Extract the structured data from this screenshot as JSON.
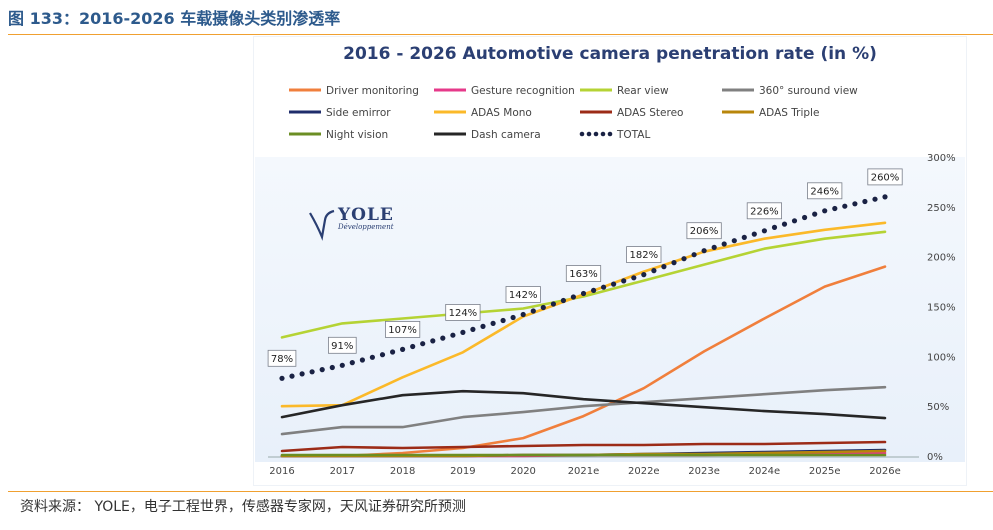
{
  "caption": "图 133：2016-2026 车载摄像头类别渗透率",
  "source": "资料来源： YOLE，电子工程世界，传感器专家网，天风证券研究所预测",
  "logo": {
    "name": "YOLE",
    "sub": "Développement"
  },
  "colors": {
    "caption": "#2d5a8c",
    "rule": "#f0a030",
    "title": "#2b3f73"
  },
  "chart_data": {
    "type": "line",
    "title": "2016 - 2026 Automotive camera penetration rate (in %)",
    "categories": [
      "2016",
      "2017",
      "2018",
      "2019",
      "2020",
      "2021e",
      "2022e",
      "2023e",
      "2024e",
      "2025e",
      "2026e"
    ],
    "y_ticks": [
      "0%",
      "50%",
      "100%",
      "150%",
      "200%",
      "250%",
      "300%"
    ],
    "ylim": [
      0,
      300
    ],
    "grid": false,
    "legend_position": "top",
    "series": [
      {
        "name": "Driver monitoring",
        "color": "#f07f3c",
        "style": "solid",
        "values": [
          0,
          0,
          3,
          8,
          18,
          40,
          68,
          105,
          138,
          170,
          190
        ]
      },
      {
        "name": "Gesture recognition",
        "color": "#e6398a",
        "style": "solid",
        "values": [
          0,
          0,
          0,
          0,
          0,
          1,
          1,
          1,
          2,
          2,
          3
        ]
      },
      {
        "name": "Rear view",
        "color": "#b5d334",
        "style": "solid",
        "values": [
          119,
          133,
          138,
          143,
          148,
          160,
          176,
          192,
          208,
          218,
          225
        ]
      },
      {
        "name": "360° suround view",
        "color": "#808080",
        "style": "solid",
        "values": [
          22,
          29,
          29,
          39,
          44,
          50,
          54,
          58,
          62,
          66,
          69
        ]
      },
      {
        "name": "Side emirror",
        "color": "#1f2d6b",
        "style": "solid",
        "values": [
          0,
          0,
          0,
          0,
          1,
          1,
          2,
          3,
          4,
          5,
          6
        ]
      },
      {
        "name": "ADAS Mono",
        "color": "#fbb929",
        "style": "solid",
        "values": [
          50,
          51,
          79,
          104,
          140,
          162,
          185,
          205,
          218,
          227,
          234
        ]
      },
      {
        "name": "ADAS Stereo",
        "color": "#9c2b17",
        "style": "solid",
        "values": [
          5,
          9,
          8,
          9,
          10,
          11,
          11,
          12,
          12,
          13,
          14
        ]
      },
      {
        "name": "ADAS Triple",
        "color": "#b8860b",
        "style": "solid",
        "values": [
          0,
          0,
          0,
          0,
          1,
          1,
          2,
          2,
          3,
          4,
          5
        ]
      },
      {
        "name": "Night vision",
        "color": "#6b8e23",
        "style": "solid",
        "values": [
          1,
          1,
          1,
          1,
          1,
          1,
          1,
          1,
          1,
          1,
          1
        ]
      },
      {
        "name": "Dash camera",
        "color": "#262626",
        "style": "solid",
        "values": [
          39,
          51,
          61,
          65,
          63,
          57,
          53,
          49,
          45,
          42,
          38
        ]
      },
      {
        "name": "TOTAL",
        "color": "#1a2244",
        "style": "dotted",
        "values": [
          78,
          91,
          107,
          124,
          142,
          163,
          182,
          206,
          226,
          246,
          260
        ],
        "data_labels": [
          "78%",
          "91%",
          "107%",
          "124%",
          "142%",
          "163%",
          "182%",
          "206%",
          "226%",
          "246%",
          "260%"
        ]
      }
    ]
  }
}
